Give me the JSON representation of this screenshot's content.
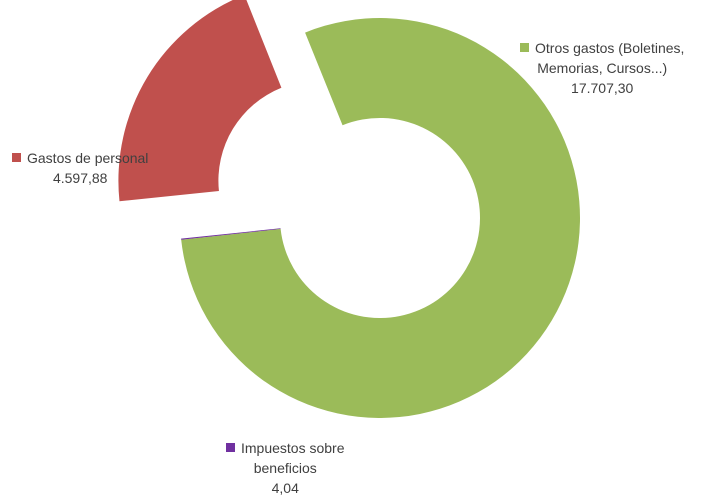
{
  "chart_data": {
    "type": "pie",
    "subtype": "donut",
    "slices": [
      {
        "name_lines": [
          "Otros gastos (Boletines,",
          "Memorias, Cursos...)"
        ],
        "value_label": "17.707,30",
        "value": 17707.3,
        "color": "#9BBB59"
      },
      {
        "name_lines": [
          "Impuestos sobre",
          "beneficios"
        ],
        "value_label": "4,04",
        "value": 4.04,
        "color": "#7030A0"
      },
      {
        "name_lines": [
          "Gastos de personal"
        ],
        "value_label": "4.597,88",
        "value": 4597.88,
        "color": "#C0504D"
      }
    ]
  }
}
